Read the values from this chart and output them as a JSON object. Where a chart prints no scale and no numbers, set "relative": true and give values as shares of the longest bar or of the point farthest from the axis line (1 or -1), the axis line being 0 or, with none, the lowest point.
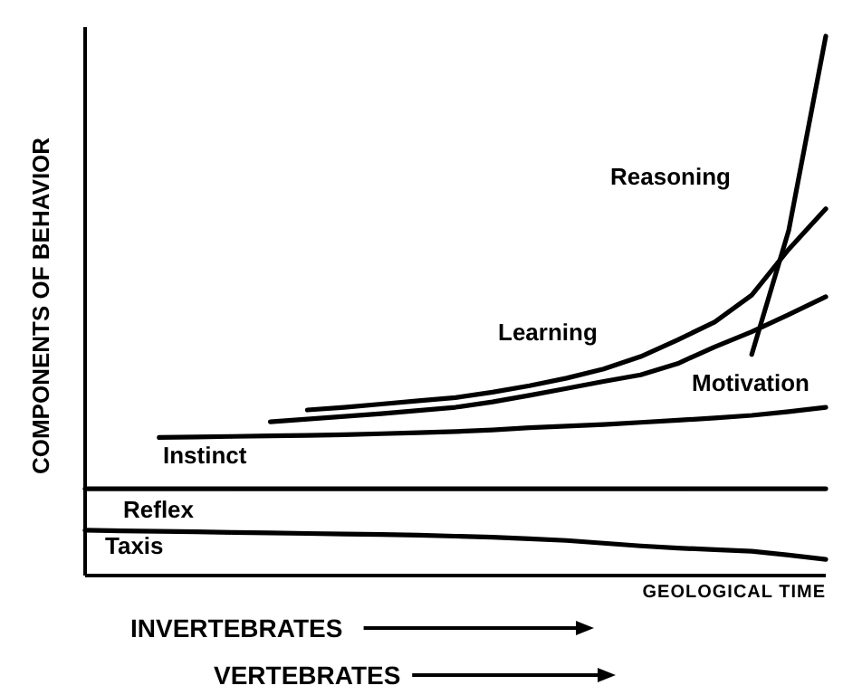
{
  "chart_data": {
    "type": "line",
    "relative": true,
    "ylabel": "COMPONENTS OF BEHAVIOR",
    "xlabel": "GEOLOGICAL TIME",
    "legend": false,
    "grid": false,
    "marker": "none",
    "line_style": "solid",
    "categories": [
      null,
      null,
      null,
      null,
      null,
      null,
      null,
      null,
      null,
      null,
      null,
      null,
      null,
      null,
      null,
      null,
      null,
      null,
      null,
      null,
      null
    ],
    "series": [
      {
        "name": "Taxis",
        "color": "#000000",
        "values": [
          0.084,
          0.083,
          0.082,
          0.081,
          0.08,
          0.079,
          0.078,
          0.077,
          0.076,
          0.075,
          0.073,
          0.071,
          0.068,
          0.065,
          0.06,
          0.055,
          0.051,
          0.048,
          0.045,
          0.038,
          0.03
        ]
      },
      {
        "name": "Reflex",
        "color": "#000000",
        "values": [
          0.161,
          0.161,
          0.161,
          0.161,
          0.161,
          0.161,
          0.161,
          0.161,
          0.161,
          0.161,
          0.161,
          0.161,
          0.161,
          0.161,
          0.161,
          0.161,
          0.161,
          0.161,
          0.161,
          0.161,
          0.161
        ]
      },
      {
        "name": "Instinct",
        "color": "#000000",
        "values": [
          null,
          null,
          0.256,
          0.257,
          0.258,
          0.259,
          0.26,
          0.261,
          0.263,
          0.265,
          0.267,
          0.27,
          0.274,
          0.277,
          0.28,
          0.284,
          0.288,
          0.292,
          0.297,
          0.304,
          0.312
        ]
      },
      {
        "name": "Motivation",
        "color": "#000000",
        "values": [
          null,
          null,
          null,
          null,
          null,
          0.285,
          0.29,
          0.295,
          0.3,
          0.306,
          0.312,
          0.322,
          0.334,
          0.347,
          0.36,
          0.372,
          0.393,
          0.424,
          0.452,
          0.484,
          0.517
        ]
      },
      {
        "name": "Learning",
        "color": "#000000",
        "values": [
          null,
          null,
          null,
          null,
          null,
          null,
          0.307,
          0.312,
          0.318,
          0.324,
          0.33,
          0.34,
          0.352,
          0.366,
          0.383,
          0.406,
          0.437,
          0.47,
          0.52,
          0.605,
          0.68
        ]
      },
      {
        "name": "Reasoning",
        "color": "#000000",
        "values": [
          null,
          null,
          null,
          null,
          null,
          null,
          null,
          null,
          null,
          null,
          null,
          null,
          null,
          null,
          null,
          null,
          null,
          null,
          0.41,
          0.64,
          1.0
        ]
      }
    ],
    "annotations": [
      "INVERTEBRATES",
      "VERTEBRATES"
    ]
  }
}
